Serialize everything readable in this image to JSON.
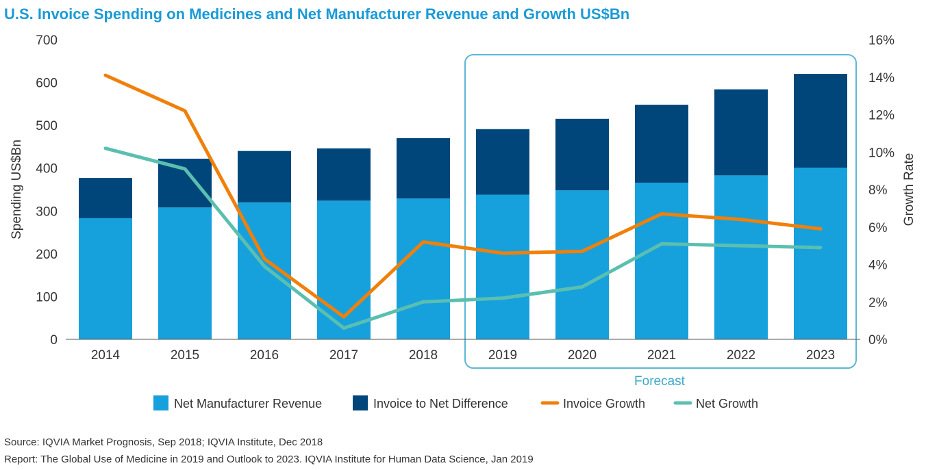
{
  "chart_data": {
    "type": "bar",
    "title": "U.S. Invoice Spending on Medicines and Net Manufacturer Revenue and Growth US$Bn",
    "categories": [
      "2014",
      "2015",
      "2016",
      "2017",
      "2018",
      "2019",
      "2020",
      "2021",
      "2022",
      "2023"
    ],
    "stacked": true,
    "series": [
      {
        "name": "Net Manufacturer Revenue",
        "kind": "bar",
        "axis": "left",
        "color": "#16a1dd",
        "values": [
          283,
          308,
          320,
          324,
          329,
          338,
          348,
          366,
          383,
          401
        ]
      },
      {
        "name": "Invoice to Net Difference",
        "kind": "bar",
        "axis": "left",
        "color": "#00467a",
        "values": [
          94,
          114,
          120,
          122,
          141,
          153,
          167,
          182,
          201,
          219
        ]
      },
      {
        "name": "Invoice Growth",
        "kind": "line",
        "axis": "right",
        "color": "#f0800a",
        "values": [
          14.1,
          12.2,
          4.3,
          1.2,
          5.2,
          4.6,
          4.7,
          6.7,
          6.4,
          5.9
        ]
      },
      {
        "name": "Net Growth",
        "kind": "line",
        "axis": "right",
        "color": "#5bbfb0",
        "values": [
          10.2,
          9.1,
          3.9,
          0.6,
          2.0,
          2.2,
          2.8,
          5.1,
          5.0,
          4.9
        ]
      }
    ],
    "ylabel": "Spending US$Bn",
    "y2label": "Growth Rate",
    "ylim": [
      0,
      700
    ],
    "yticks": [
      0,
      100,
      200,
      300,
      400,
      500,
      600,
      700
    ],
    "y2lim": [
      0,
      16
    ],
    "y2ticks": [
      "0%",
      "2%",
      "4%",
      "6%",
      "8%",
      "10%",
      "12%",
      "14%",
      "16%"
    ],
    "forecast_label": "Forecast",
    "forecast_range": [
      "2019",
      "2023"
    ],
    "legend_position": "bottom",
    "grid": false
  },
  "source": "Source: IQVIA Market Prognosis, Sep 2018; IQVIA Institute, Dec 2018",
  "report": "Report: The Global Use of Medicine in 2019 and Outlook to 2023. IQVIA Institute for Human Data Science, Jan 2019",
  "colors": {
    "title": "#1a9bd7",
    "forecast_box": "#5ab8d6"
  }
}
